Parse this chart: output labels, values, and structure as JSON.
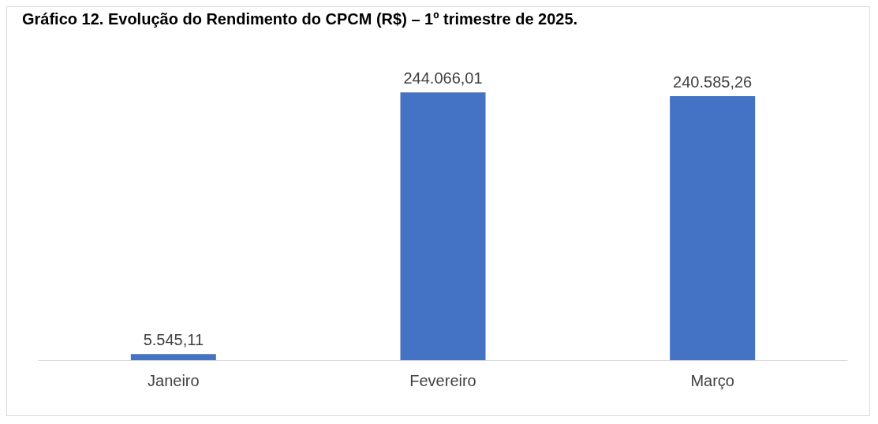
{
  "chart_data": {
    "type": "bar",
    "title": "Gráfico 12. Evolução do Rendimento do CPCM (R$) – 1º trimestre de 2025.",
    "categories": [
      "Janeiro",
      "Fevereiro",
      "Março"
    ],
    "values": [
      5545.11,
      244066.01,
      240585.26
    ],
    "value_labels": [
      "5.545,11",
      "244.066,01",
      "240.585,26"
    ],
    "color": "#4472c4"
  }
}
